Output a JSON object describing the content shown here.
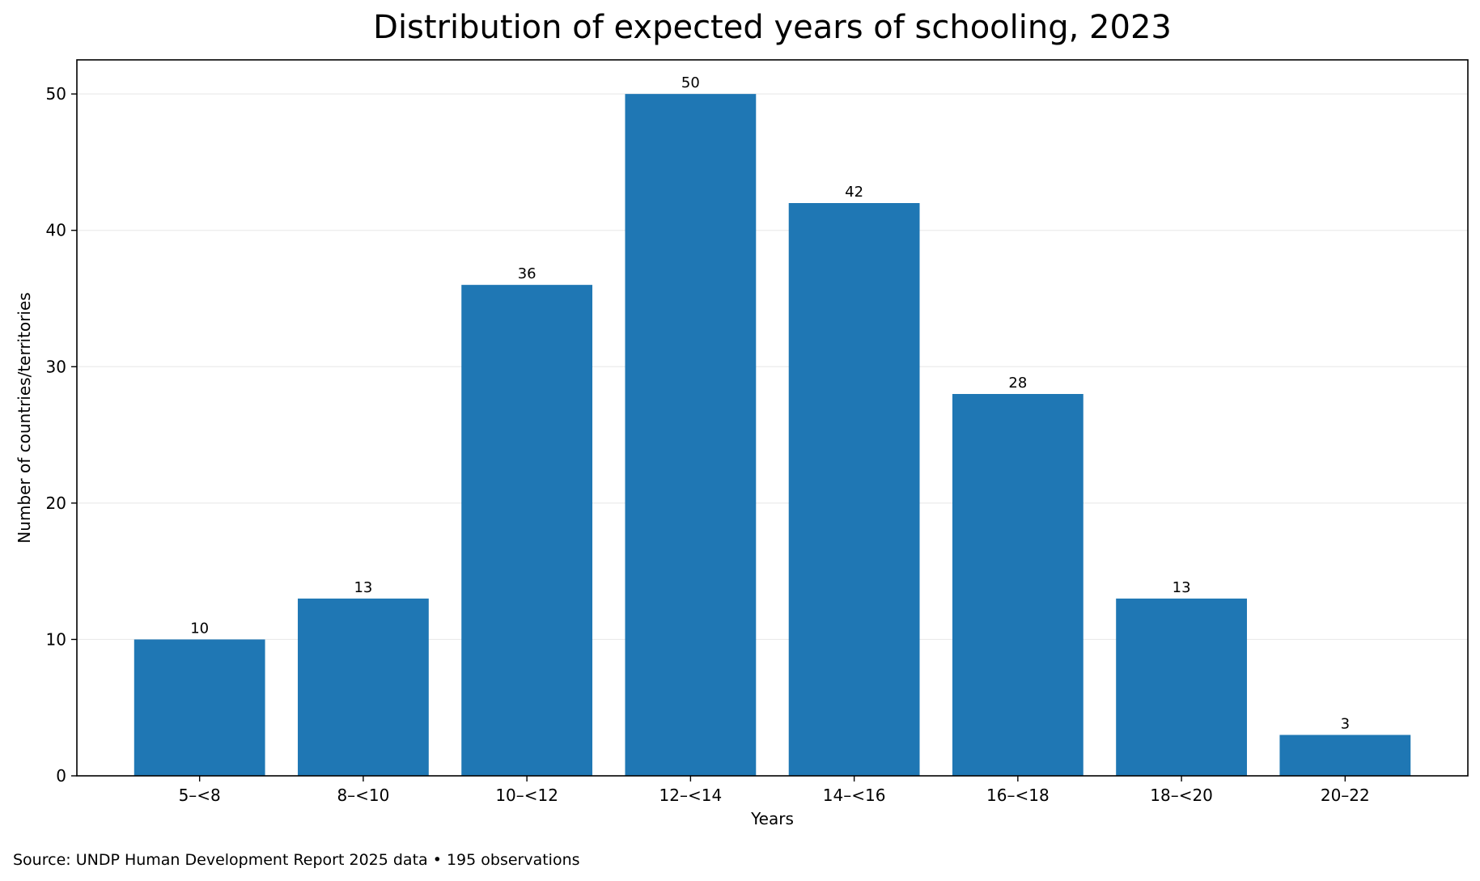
{
  "chart_data": {
    "type": "bar",
    "title": "Distribution of expected years of schooling, 2023",
    "xlabel": "Years",
    "ylabel": "Number of countries/territories",
    "categories": [
      "5–<8",
      "8–<10",
      "10–<12",
      "12–<14",
      "14–<16",
      "16–<18",
      "18–<20",
      "20–22"
    ],
    "values": [
      10,
      13,
      36,
      50,
      42,
      28,
      13,
      3
    ],
    "ylim": [
      0,
      52.5
    ],
    "yticks": [
      0,
      10,
      20,
      30,
      40,
      50
    ],
    "grid": "horizontal",
    "bar_color": "#1f77b4",
    "grid_color": "#ebebeb",
    "source": "Source: UNDP Human Development Report 2025 data • 195 observations"
  }
}
